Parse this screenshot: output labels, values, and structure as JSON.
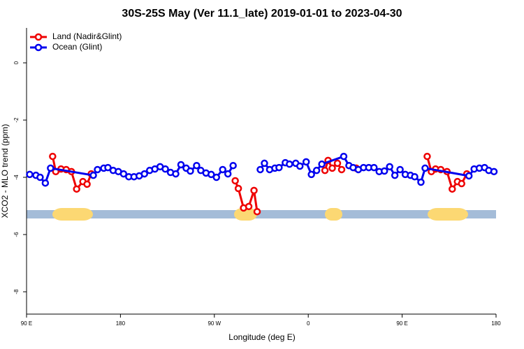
{
  "chart_data": {
    "type": "line",
    "title": "30S-25S May (Ver 11.1_late)   2019-01-01 to 2023-04-30",
    "xlabel": "Longitude (deg E)",
    "ylabel": "XCO2 - MLO trend (ppm)",
    "xlim": [
      90,
      540
    ],
    "xticks": [
      {
        "value": 90,
        "label": "90 E"
      },
      180,
      {
        "value": 270,
        "label": "90 W"
      },
      {
        "value": 360,
        "label": "0"
      },
      {
        "value": 450,
        "label": "90 E"
      },
      {
        "value": 540,
        "label": "180"
      }
    ],
    "ylim": [
      -8.78,
      1.22
    ],
    "yticks": [
      0,
      -2,
      -4,
      -6,
      -8
    ],
    "grid": false,
    "legend": "upper left",
    "series": [
      {
        "name": "Land (Nadir&Glint)",
        "color": "#ee0000",
        "x": [
          115,
          118,
          123,
          128,
          133,
          138,
          144,
          148,
          152,
          null,
          290,
          293,
          298,
          303,
          308,
          311,
          null,
          376,
          379,
          383,
          388,
          392,
          null,
          406,
          null,
          474,
          478,
          482,
          487,
          493,
          498,
          503,
          507,
          512
        ],
        "values": [
          -3.27,
          -3.8,
          -3.71,
          -3.73,
          -3.8,
          -4.41,
          -4.15,
          -4.24,
          -3.88,
          null,
          -4.12,
          -4.39,
          -5.07,
          -5.02,
          -4.46,
          -5.2,
          null,
          -3.76,
          -3.41,
          -3.68,
          -3.51,
          -3.73,
          null,
          -3.68,
          null,
          -3.27,
          -3.8,
          -3.71,
          -3.73,
          -3.8,
          -4.41,
          -4.15,
          -4.22,
          -3.88
        ]
      },
      {
        "name": "Ocean (Glint)",
        "color": "#0000ee",
        "x": [
          93,
          99,
          103,
          108,
          113,
          154,
          158,
          164,
          168,
          173,
          178,
          183,
          188,
          193,
          198,
          203,
          208,
          213,
          218,
          223,
          228,
          233,
          238,
          243,
          247,
          253,
          257,
          262,
          267,
          272,
          278,
          283,
          288,
          null,
          314,
          318,
          323,
          328,
          332,
          338,
          342,
          348,
          352,
          358,
          363,
          368,
          373,
          394,
          399,
          403,
          408,
          413,
          418,
          423,
          428,
          433,
          438,
          443,
          448,
          453,
          458,
          462,
          468,
          472,
          514,
          519,
          524,
          529,
          533,
          538
        ],
        "values": [
          -3.9,
          -3.93,
          -4.0,
          -4.2,
          -3.68,
          -3.93,
          -3.73,
          -3.68,
          -3.66,
          -3.76,
          -3.8,
          -3.88,
          -3.98,
          -3.98,
          -3.95,
          -3.88,
          -3.76,
          -3.71,
          -3.63,
          -3.71,
          -3.83,
          -3.88,
          -3.56,
          -3.68,
          -3.78,
          -3.59,
          -3.76,
          -3.85,
          -3.9,
          -4.0,
          -3.73,
          -3.88,
          -3.59,
          null,
          -3.73,
          -3.51,
          -3.73,
          -3.68,
          -3.66,
          -3.49,
          -3.54,
          -3.51,
          -3.61,
          -3.46,
          -3.9,
          -3.76,
          -3.54,
          -3.27,
          -3.59,
          -3.66,
          -3.73,
          -3.66,
          -3.66,
          -3.66,
          -3.8,
          -3.78,
          -3.63,
          -3.93,
          -3.73,
          -3.9,
          -3.93,
          -3.98,
          -4.17,
          -3.68,
          -3.95,
          -3.71,
          -3.68,
          -3.66,
          -3.76,
          -3.8
        ]
      }
    ]
  }
}
